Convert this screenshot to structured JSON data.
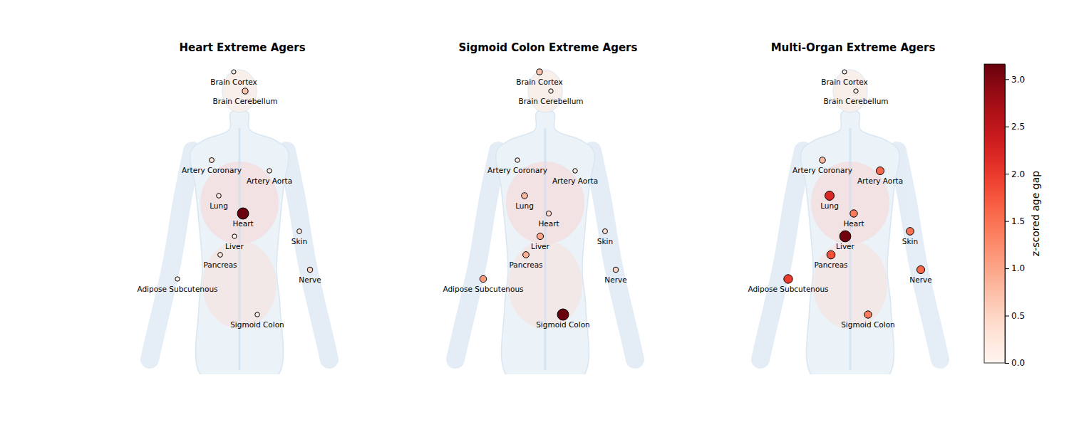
{
  "chart_data": [
    {
      "type": "body_map",
      "title": "Heart Extreme Agers",
      "categories": [
        "Brain Cortex",
        "Brain Cerebellum",
        "Artery Coronary",
        "Artery Aorta",
        "Lung",
        "Heart",
        "Liver",
        "Skin",
        "Pancreas",
        "Adipose Subcutenous",
        "Nerve",
        "Sigmoid Colon"
      ],
      "values": [
        0.05,
        0.7,
        0.3,
        0.15,
        0.2,
        3.15,
        0.1,
        0.25,
        0.25,
        0.1,
        0.5,
        0.15
      ]
    },
    {
      "type": "body_map",
      "title": "Sigmoid Colon Extreme Agers",
      "categories": [
        "Brain Cortex",
        "Brain Cerebellum",
        "Artery Coronary",
        "Artery Aorta",
        "Lung",
        "Heart",
        "Liver",
        "Skin",
        "Pancreas",
        "Adipose Subcutenous",
        "Nerve",
        "Sigmoid Colon"
      ],
      "values": [
        0.7,
        0.1,
        0.15,
        0.15,
        0.8,
        0.4,
        1.0,
        0.3,
        0.9,
        1.1,
        0.5,
        3.15
      ]
    },
    {
      "type": "body_map",
      "title": "Multi-Organ Extreme Agers",
      "categories": [
        "Brain Cortex",
        "Brain Cerebellum",
        "Artery Coronary",
        "Artery Aorta",
        "Lung",
        "Heart",
        "Liver",
        "Skin",
        "Pancreas",
        "Adipose Subcutenous",
        "Nerve",
        "Sigmoid Colon"
      ],
      "values": [
        0.05,
        0.1,
        0.8,
        1.6,
        2.2,
        1.4,
        3.1,
        1.5,
        1.8,
        2.0,
        1.6,
        1.4
      ],
      "colorbar_label": "z-scored age gap",
      "colorbar_range": [
        0,
        3.16
      ],
      "colorbar_ticks": [
        {
          "value": 0,
          "label": "0.0"
        },
        {
          "value": 0.5,
          "label": "0.5"
        },
        {
          "value": 1,
          "label": "1.0"
        },
        {
          "value": 1.5,
          "label": "1.5"
        },
        {
          "value": 2,
          "label": "2.0"
        },
        {
          "value": 2.5,
          "label": "2.5"
        },
        {
          "value": 3,
          "label": "3.0"
        }
      ]
    }
  ]
}
